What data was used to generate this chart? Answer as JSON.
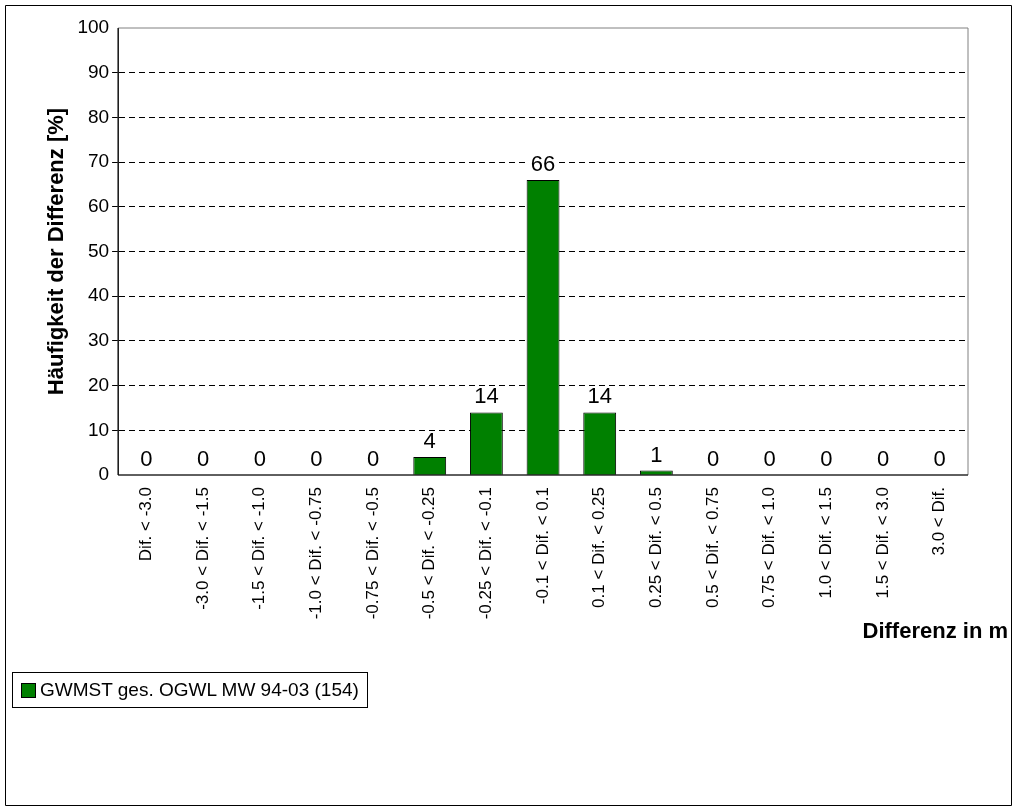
{
  "chart_data": {
    "type": "bar",
    "xlabel": "Differenz in m",
    "ylabel": "Häufigkeit der Differenz [%]",
    "categories": [
      "Dif. < -3.0",
      "-3.0 < Dif. < -1.5",
      "-1.5 < Dif. < -1.0",
      "-1.0 < Dif. < -0.75",
      "-0.75 < Dif. < -0.5",
      "-0.5 < Dif. < -0.25",
      "-0.25 < Dif. < -0.1",
      "-0.1 < Dif. < 0.1",
      "0.1 < Dif. < 0.25",
      "0.25 < Dif. < 0.5",
      "0.5 < Dif. < 0.75",
      "0.75 < Dif. < 1.0",
      "1.0 < Dif. < 1.5",
      "1.5 < Dif. < 3.0",
      "3.0 < Dif."
    ],
    "series": [
      {
        "name": "GWMST ges. OGWL MW 94-03 (154)",
        "color": "#008000",
        "values": [
          0,
          0,
          0,
          0,
          0,
          4,
          14,
          66,
          14,
          1,
          0,
          0,
          0,
          0,
          0
        ]
      }
    ],
    "ylim": [
      0,
      100
    ],
    "yticks": [
      0,
      10,
      20,
      30,
      40,
      50,
      60,
      70,
      80,
      90,
      100
    ],
    "grid": "y",
    "legend": "bottom left",
    "data_labels": true
  }
}
